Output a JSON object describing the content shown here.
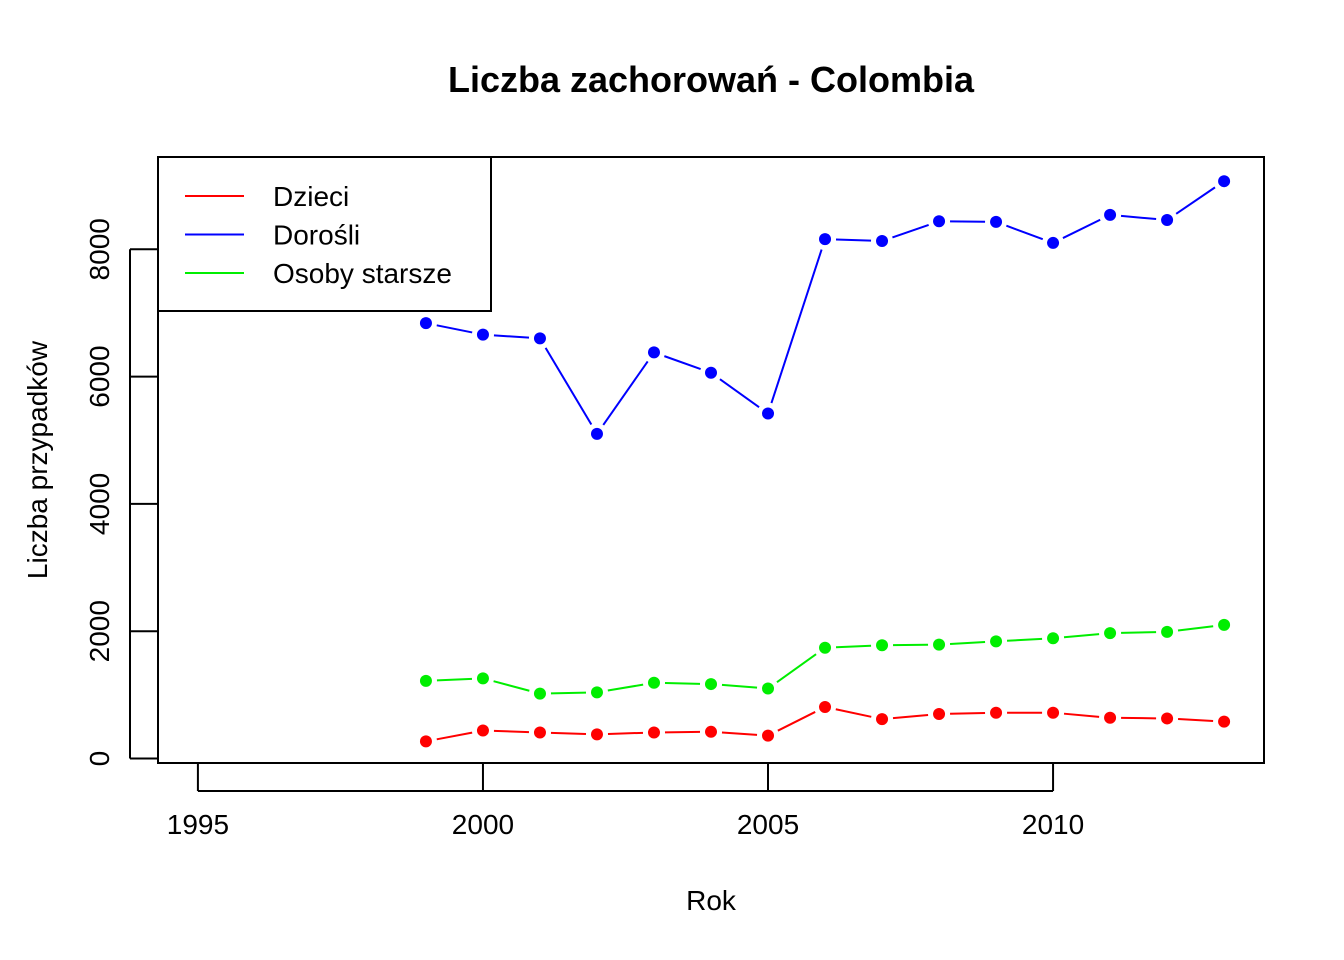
{
  "chart_data": {
    "type": "line",
    "title": "Liczba zachorowań -  Colombia",
    "xlabel": "Rok",
    "ylabel": "Liczba przypadków",
    "xlim": [
      1994.3,
      2013.7
    ],
    "ylim": [
      -70,
      9450
    ],
    "x_ticks": [
      1995,
      2000,
      2005,
      2010
    ],
    "y_ticks": [
      0,
      2000,
      4000,
      6000,
      8000
    ],
    "x": [
      1999,
      2000,
      2001,
      2002,
      2003,
      2004,
      2005,
      2006,
      2007,
      2008,
      2009,
      2010,
      2011,
      2012,
      2013
    ],
    "grid": false,
    "legend_position": "top-left",
    "series": [
      {
        "name": "Dzieci",
        "color": "#ff0000",
        "values": [
          270,
          440,
          410,
          380,
          410,
          420,
          360,
          810,
          620,
          700,
          720,
          720,
          640,
          630,
          580
        ]
      },
      {
        "name": "Dorośli",
        "color": "#0000ff",
        "values": [
          6840,
          6660,
          6600,
          5100,
          6380,
          6060,
          5420,
          8160,
          8130,
          8440,
          8430,
          8100,
          8540,
          8460,
          9070
        ]
      },
      {
        "name": "Osoby starsze",
        "color": "#00ee00",
        "values": [
          1220,
          1260,
          1020,
          1040,
          1190,
          1170,
          1100,
          1740,
          1780,
          1790,
          1840,
          1890,
          1970,
          1990,
          2100
        ]
      }
    ]
  }
}
